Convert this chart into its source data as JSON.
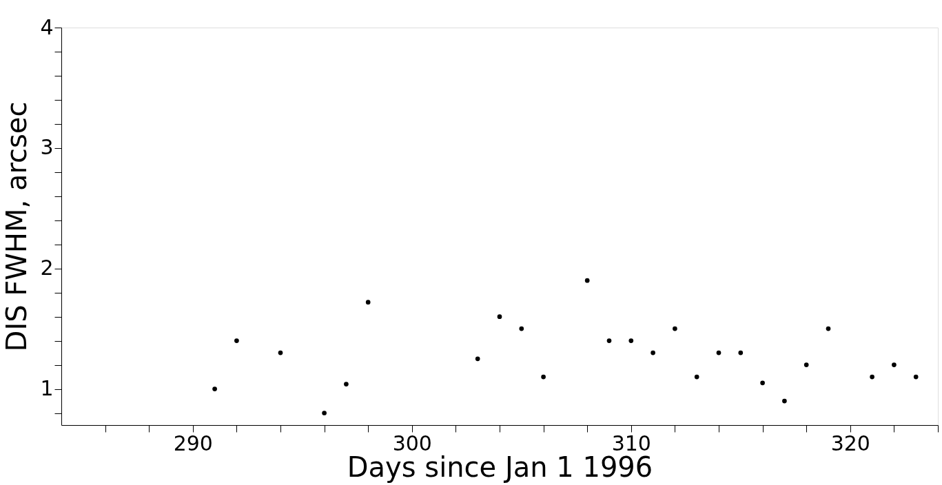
{
  "chart_data": {
    "type": "scatter",
    "xlabel": "Days since Jan 1 1996",
    "ylabel": "DIS FWHM, arcsec",
    "marker": "circle",
    "grid": false,
    "x": [
      291,
      292,
      294,
      296,
      297,
      298,
      303,
      304,
      305,
      306,
      308,
      309,
      310,
      311,
      312,
      313,
      314,
      315,
      316,
      317,
      318,
      319,
      321,
      322,
      323
    ],
    "series": [
      {
        "color": "#000000",
        "values": [
          1.0,
          1.4,
          1.3,
          0.8,
          1.04,
          1.72,
          1.25,
          1.6,
          1.5,
          1.1,
          1.9,
          1.4,
          1.4,
          1.3,
          1.5,
          1.1,
          1.3,
          1.3,
          1.05,
          0.9,
          1.2,
          1.5,
          1.1,
          1.2,
          1.1
        ]
      }
    ],
    "xlim": [
      284,
      324
    ],
    "ylim": [
      0.7,
      4
    ],
    "xticks": [
      {
        "value": 286,
        "label": null
      },
      {
        "value": 288,
        "label": null
      },
      290,
      {
        "value": 292,
        "label": null
      },
      {
        "value": 294,
        "label": null
      },
      {
        "value": 296,
        "label": null
      },
      {
        "value": 298,
        "label": null
      },
      300,
      {
        "value": 302,
        "label": null
      },
      {
        "value": 304,
        "label": null
      },
      {
        "value": 306,
        "label": null
      },
      {
        "value": 308,
        "label": null
      },
      310,
      {
        "value": 312,
        "label": null
      },
      {
        "value": 314,
        "label": null
      },
      {
        "value": 316,
        "label": null
      },
      {
        "value": 318,
        "label": null
      },
      320,
      {
        "value": 322,
        "label": null
      },
      {
        "value": 324,
        "label": null
      }
    ],
    "yticks": [
      {
        "value": 0.8,
        "label": null
      },
      1,
      {
        "value": 1.2,
        "label": null
      },
      {
        "value": 1.4,
        "label": null
      },
      {
        "value": 1.6,
        "label": null
      },
      {
        "value": 1.8,
        "label": null
      },
      2,
      {
        "value": 2.2,
        "label": null
      },
      {
        "value": 2.4,
        "label": null
      },
      {
        "value": 2.6,
        "label": null
      },
      {
        "value": 2.8,
        "label": null
      },
      3,
      {
        "value": 3.2,
        "label": null
      },
      {
        "value": 3.4,
        "label": null
      },
      {
        "value": 3.6,
        "label": null
      },
      {
        "value": 3.8,
        "label": null
      },
      4
    ]
  }
}
